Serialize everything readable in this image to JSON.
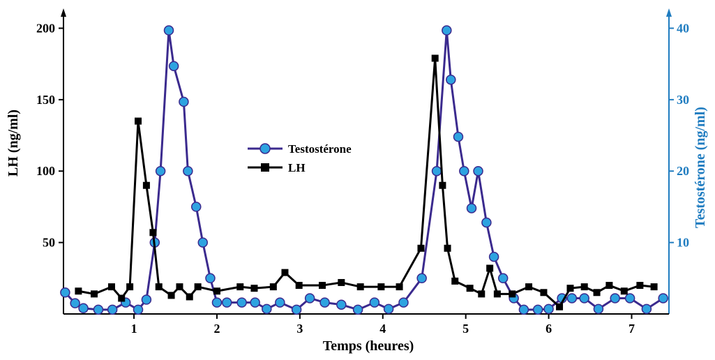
{
  "chart_data": {
    "type": "line",
    "title": "",
    "xlabel": "Temps (heures)",
    "ylabel_left": "LH (ng/ml)",
    "ylabel_right": "Testostérone (ng/ml)",
    "xlim": [
      0.15,
      7.45
    ],
    "ylim_left": [
      0,
      210
    ],
    "ylim_right": [
      0,
      42
    ],
    "x_ticks": [
      1,
      2,
      3,
      4,
      5,
      6,
      7
    ],
    "y_ticks_left": [
      50,
      100,
      150,
      200
    ],
    "y_ticks_right": [
      10,
      20,
      30,
      40
    ],
    "grid": false,
    "legend_position": "center-left",
    "series": [
      {
        "name": "Testostérone",
        "axis": "right",
        "color": "#3b2a8e",
        "marker_fill": "#2ea3e0",
        "marker": "circle",
        "x": [
          0.17,
          0.29,
          0.39,
          0.57,
          0.74,
          0.9,
          1.05,
          1.15,
          1.25,
          1.32,
          1.42,
          1.48,
          1.6,
          1.65,
          1.75,
          1.83,
          1.92,
          2.0,
          2.12,
          2.3,
          2.46,
          2.6,
          2.76,
          2.96,
          3.12,
          3.3,
          3.5,
          3.7,
          3.9,
          4.07,
          4.25,
          4.47,
          4.65,
          4.77,
          4.82,
          4.91,
          4.98,
          5.07,
          5.15,
          5.25,
          5.34,
          5.45,
          5.58,
          5.7,
          5.87,
          6.0,
          6.16,
          6.28,
          6.43,
          6.6,
          6.8,
          6.98,
          7.18,
          7.38
        ],
        "values": [
          3.0,
          1.5,
          0.8,
          0.6,
          0.6,
          1.6,
          0.6,
          2.0,
          10.0,
          20.0,
          39.7,
          34.7,
          29.7,
          20.0,
          15.0,
          10.0,
          5.0,
          1.6,
          1.6,
          1.6,
          1.6,
          0.7,
          1.6,
          0.6,
          2.2,
          1.6,
          1.3,
          0.6,
          1.6,
          0.7,
          1.6,
          5.0,
          20.0,
          39.7,
          32.8,
          24.8,
          20.0,
          14.8,
          20.0,
          12.8,
          8.0,
          5.0,
          2.2,
          0.6,
          0.6,
          0.7,
          2.2,
          2.2,
          2.2,
          0.7,
          2.2,
          2.2,
          0.7,
          2.2
        ]
      },
      {
        "name": "LH",
        "axis": "left",
        "color": "#000000",
        "marker_fill": "#000000",
        "marker": "square",
        "x": [
          0.33,
          0.52,
          0.73,
          0.85,
          0.95,
          1.05,
          1.15,
          1.23,
          1.3,
          1.45,
          1.55,
          1.67,
          1.77,
          2.0,
          2.28,
          2.45,
          2.68,
          2.82,
          2.99,
          3.27,
          3.5,
          3.73,
          3.98,
          4.2,
          4.46,
          4.63,
          4.72,
          4.78,
          4.87,
          5.05,
          5.19,
          5.29,
          5.38,
          5.56,
          5.76,
          5.94,
          6.13,
          6.26,
          6.43,
          6.58,
          6.73,
          6.91,
          7.1,
          7.27
        ],
        "values": [
          16.0,
          14.0,
          19.0,
          11.0,
          19.0,
          135.0,
          90.0,
          57.0,
          19.0,
          13.0,
          19.0,
          12.0,
          19.0,
          16.0,
          19.0,
          18.0,
          19.0,
          29.0,
          20.0,
          20.0,
          22.0,
          19.0,
          19.0,
          19.0,
          46.0,
          179.0,
          90.0,
          46.0,
          23.0,
          18.0,
          14.0,
          32.0,
          14.0,
          14.0,
          19.0,
          15.0,
          5.0,
          18.0,
          19.0,
          15.0,
          20.0,
          16.0,
          20.0,
          19.0
        ]
      }
    ]
  }
}
